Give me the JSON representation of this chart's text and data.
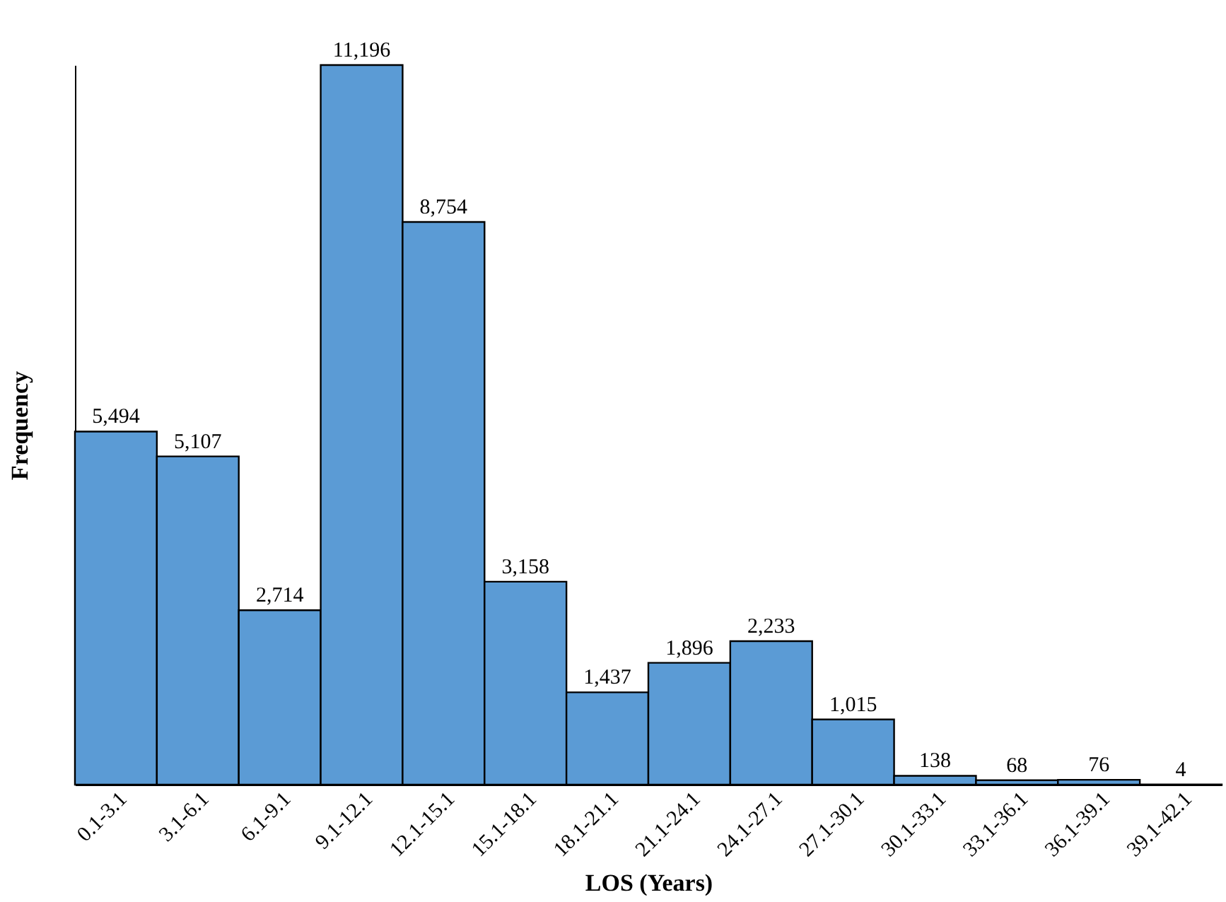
{
  "chart_data": {
    "type": "bar",
    "xlabel": "LOS (Years)",
    "ylabel": "Frequency",
    "categories": [
      "0.1-3.1",
      "3.1-6.1",
      "6.1-9.1",
      "9.1-12.1",
      "12.1-15.1",
      "15.1-18.1",
      "18.1-21.1",
      "21.1-24.1",
      "24.1-27.1",
      "27.1-30.1",
      "30.1-33.1",
      "33.1-36.1",
      "36.1-39.1",
      "39.1-42.1"
    ],
    "values": [
      5494,
      5107,
      2714,
      11196,
      8754,
      3158,
      1437,
      1896,
      2233,
      1015,
      138,
      68,
      76,
      4
    ],
    "value_labels": [
      "5,494",
      "5,107",
      "2,714",
      "11,196",
      "8,754",
      "3,158",
      "1,437",
      "1,896",
      "2,233",
      "1,015",
      "138",
      "68",
      "76",
      "4"
    ],
    "color": "#5b9bd5",
    "tick_labels": "x"
  }
}
